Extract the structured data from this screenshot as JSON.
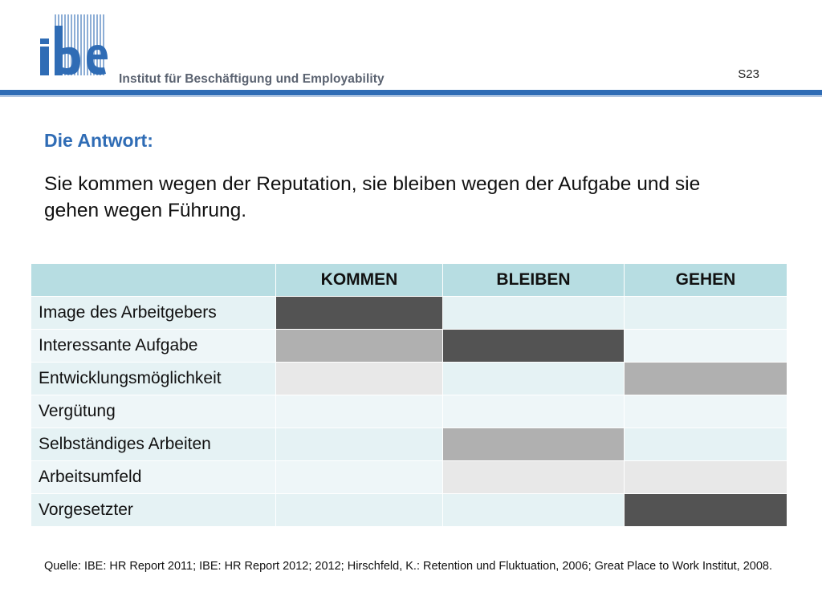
{
  "header": {
    "logo_text": "ibe",
    "institute_name": "Institut für Beschäftigung und Employability",
    "slide_number": "S23",
    "brand_color": "#2f6cb5"
  },
  "content": {
    "heading": "Die Antwort:",
    "statement": "Sie kommen wegen der Reputation, sie bleiben wegen der Aufgabe und sie gehen wegen Führung."
  },
  "table": {
    "columns": [
      "",
      "KOMMEN",
      "BLEIBEN",
      "GEHEN"
    ],
    "legend_colors": {
      "3": "#535353",
      "2": "#b0b0b0",
      "1": "#e8e8e8",
      "0": "#eef6f8"
    },
    "rows": [
      {
        "label": "Image des Arbeitgebers",
        "levels": [
          3,
          0,
          0
        ]
      },
      {
        "label": "Interessante Aufgabe",
        "levels": [
          2,
          3,
          0
        ]
      },
      {
        "label": "Entwicklungsmöglichkeit",
        "levels": [
          1,
          0,
          2
        ]
      },
      {
        "label": "Vergütung",
        "levels": [
          0,
          0,
          0
        ]
      },
      {
        "label": "Selbständiges Arbeiten",
        "levels": [
          0,
          2,
          0
        ]
      },
      {
        "label": "Arbeitsumfeld",
        "levels": [
          0,
          1,
          1
        ]
      },
      {
        "label": "Vorgesetzter",
        "levels": [
          0,
          0,
          3
        ]
      }
    ]
  },
  "footer": {
    "source": "Quelle: IBE: HR Report 2011; IBE: HR Report 2012; 2012; Hirschfeld, K.: Retention und Fluktuation, 2006; Great Place to Work Institut, 2008."
  }
}
